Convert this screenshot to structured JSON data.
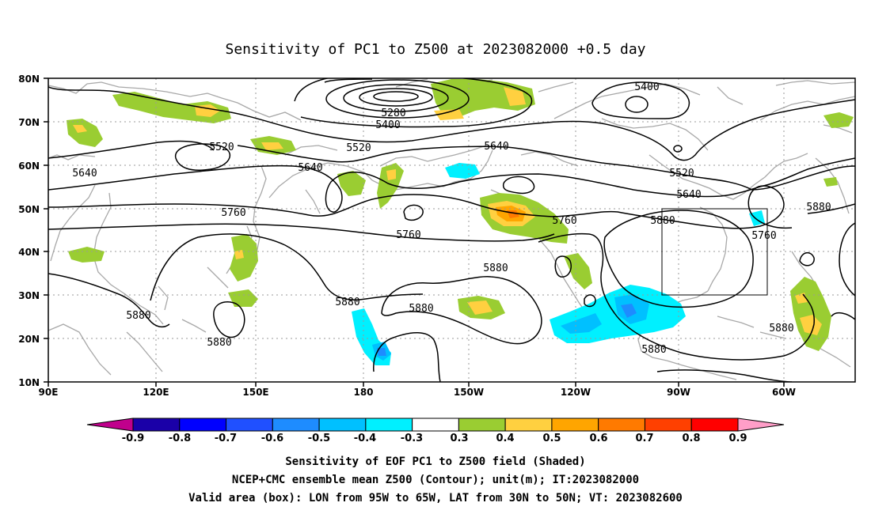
{
  "title": "Sensitivity of PC1 to Z500 at 2023082000 +0.5 day",
  "lat_labels": [
    "80N",
    "70N",
    "60N",
    "50N",
    "40N",
    "30N",
    "20N",
    "10N"
  ],
  "lon_labels": [
    "90E",
    "120E",
    "150E",
    "180",
    "150W",
    "120W",
    "90W",
    "60W"
  ],
  "contour_labels": [
    {
      "text": "5280"
    },
    {
      "text": "5400"
    },
    {
      "text": "5400"
    },
    {
      "text": "5520"
    },
    {
      "text": "5520"
    },
    {
      "text": "5520"
    },
    {
      "text": "5640"
    },
    {
      "text": "5640"
    },
    {
      "text": "5640"
    },
    {
      "text": "5640"
    },
    {
      "text": "5760"
    },
    {
      "text": "5760"
    },
    {
      "text": "5760"
    },
    {
      "text": "5760"
    },
    {
      "text": "5880"
    },
    {
      "text": "5880"
    },
    {
      "text": "5880"
    },
    {
      "text": "5880"
    },
    {
      "text": "5880"
    },
    {
      "text": "5880"
    },
    {
      "text": "5880"
    },
    {
      "text": "5880"
    },
    {
      "text": "5880"
    }
  ],
  "colorbar": {
    "labels": [
      "-0.9",
      "-0.8",
      "-0.7",
      "-0.6",
      "-0.5",
      "-0.4",
      "-0.3",
      "0.3",
      "0.4",
      "0.5",
      "0.6",
      "0.7",
      "0.8",
      "0.9"
    ],
    "colors": [
      "#1a00a8",
      "#0000ff",
      "#2050ff",
      "#1e8cff",
      "#00c0ff",
      "#00f0ff",
      "#ffffff",
      "#9acd32",
      "#ffd040",
      "#ffa500",
      "#ff7a00",
      "#ff4000",
      "#ff0000"
    ],
    "low_extend_color": "#c0008c",
    "high_extend_color": "#ff9ec8"
  },
  "caption": {
    "line1": "Sensitivity of EOF PC1 to Z500 field (Shaded)",
    "line2": "NCEP+CMC ensemble mean Z500 (Contour); unit(m); IT:2023082000",
    "line3": "Valid area (box): LON from 95W to 65W, LAT from 30N to 50N; VT: 2023082600"
  }
}
